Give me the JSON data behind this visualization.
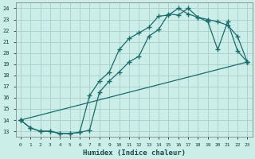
{
  "xlabel": "Humidex (Indice chaleur)",
  "bg_color": "#cceee8",
  "grid_color": "#aacccc",
  "line_color": "#1a6b6b",
  "xlim": [
    -0.5,
    23.5
  ],
  "ylim": [
    12.5,
    24.5
  ],
  "xticks": [
    0,
    1,
    2,
    3,
    4,
    5,
    6,
    7,
    8,
    9,
    10,
    11,
    12,
    13,
    14,
    15,
    16,
    17,
    18,
    19,
    20,
    21,
    22,
    23
  ],
  "yticks": [
    13,
    14,
    15,
    16,
    17,
    18,
    19,
    20,
    21,
    22,
    23,
    24
  ],
  "line1_x": [
    0,
    1,
    2,
    3,
    4,
    5,
    6,
    7,
    8,
    9,
    10,
    11,
    12,
    13,
    14,
    15,
    16,
    17,
    18,
    19,
    20,
    21,
    22,
    23
  ],
  "line1_y": [
    14,
    13.3,
    13.0,
    13.0,
    12.8,
    12.8,
    12.9,
    13.1,
    16.5,
    17.5,
    18.3,
    19.2,
    19.7,
    21.5,
    22.1,
    23.5,
    23.4,
    24.0,
    23.2,
    22.8,
    20.3,
    22.8,
    20.2,
    19.2
  ],
  "line2_x": [
    0,
    1,
    2,
    3,
    4,
    5,
    6,
    7,
    8,
    9,
    10,
    11,
    12,
    13,
    14,
    15,
    16,
    17,
    18,
    19,
    20,
    21,
    22,
    23
  ],
  "line2_y": [
    14,
    13.3,
    13.0,
    13.0,
    12.8,
    12.8,
    12.9,
    16.2,
    17.5,
    18.3,
    20.3,
    21.3,
    21.8,
    22.3,
    23.3,
    23.4,
    24.0,
    23.5,
    23.2,
    23.0,
    22.8,
    22.5,
    21.5,
    19.2
  ],
  "line3_x": [
    0,
    23
  ],
  "line3_y": [
    14,
    19.2
  ]
}
